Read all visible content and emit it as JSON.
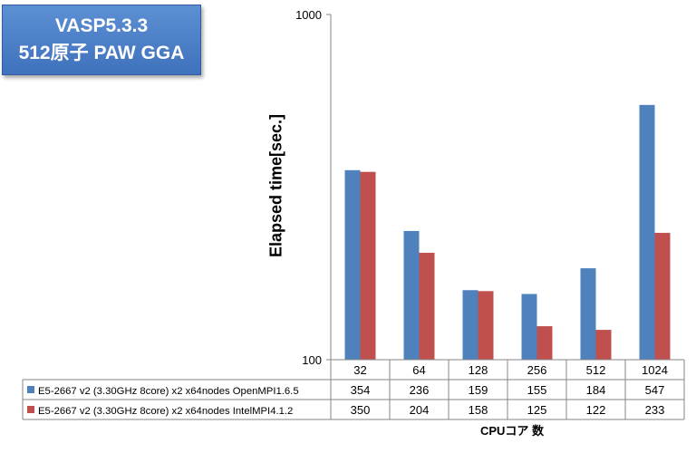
{
  "title_box": {
    "line1": "VASP5.3.3",
    "line2": "512原子 PAW GGA"
  },
  "chart_data": {
    "type": "bar",
    "yscale": "log",
    "ylim": [
      100,
      1000
    ],
    "yticks": [
      "100",
      "1000"
    ],
    "ylabel": "Elapsed time[sec.]",
    "xlabel": "CPUコア 数",
    "categories": [
      "32",
      "64",
      "128",
      "256",
      "512",
      "1024"
    ],
    "series": [
      {
        "name": "E5-2667 v2 (3.30GHz 8core) x2 x64nodes OpenMPI1.6.5",
        "color": "#4f81bd",
        "values": [
          354,
          236,
          159,
          155,
          184,
          547
        ],
        "labels": [
          "354",
          "236",
          "159",
          "155",
          "184",
          "547"
        ]
      },
      {
        "name": "E5-2667 v2 (3.30GHz 8core) x2 x64nodes IntelMPI4.1.2",
        "color": "#c0504d",
        "values": [
          350,
          204,
          158,
          125,
          122,
          233
        ],
        "labels": [
          "350",
          "204",
          "158",
          "125",
          "122",
          "233"
        ]
      }
    ],
    "grid": false,
    "legend": "data-table"
  }
}
